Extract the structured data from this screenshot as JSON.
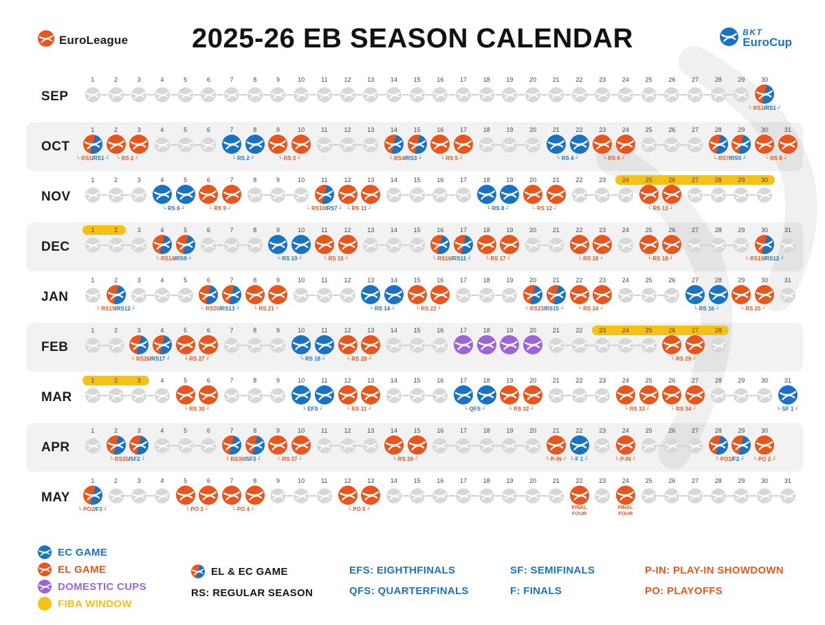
{
  "header": {
    "title": "2025-26 EB SEASON CALENDAR",
    "left_logo": "EuroLeague",
    "right_logo_top": "BKT",
    "right_logo_bottom": "EuroCup"
  },
  "colors": {
    "el": "#e8561d",
    "ec": "#1a73c2",
    "cup": "#9c64d4",
    "fiba": "#f5c116",
    "gray": "#d8d8d8",
    "slash": "#333333"
  },
  "months": [
    {
      "name": "SEP",
      "days": 30,
      "shaded": false,
      "fiba": [],
      "events": [
        {
          "start": 30,
          "end": 30,
          "type": "both",
          "label": "RS1/RS1"
        }
      ]
    },
    {
      "name": "OCT",
      "days": 31,
      "shaded": true,
      "fiba": [],
      "events": [
        {
          "start": 1,
          "end": 1,
          "type": "both",
          "label": "RS1/RS1"
        },
        {
          "start": 2,
          "end": 3,
          "type": "el",
          "label": "RS 2"
        },
        {
          "start": 7,
          "end": 8,
          "type": "ec",
          "label": "RS 2"
        },
        {
          "start": 9,
          "end": 10,
          "type": "el",
          "label": "RS 3"
        },
        {
          "start": 14,
          "end": 15,
          "type": "both",
          "label": "RS4/RS3"
        },
        {
          "start": 16,
          "end": 17,
          "type": "el",
          "label": "RS 5"
        },
        {
          "start": 21,
          "end": 22,
          "type": "ec",
          "label": "RS 4"
        },
        {
          "start": 23,
          "end": 24,
          "type": "el",
          "label": "RS 6"
        },
        {
          "start": 28,
          "end": 29,
          "type": "both",
          "label": "RS7/RS5"
        },
        {
          "start": 30,
          "end": 31,
          "type": "el",
          "label": "RS 8"
        }
      ]
    },
    {
      "name": "NOV",
      "days": 30,
      "shaded": false,
      "fiba": [
        [
          24,
          30
        ]
      ],
      "events": [
        {
          "start": 4,
          "end": 5,
          "type": "ec",
          "label": "RS 6"
        },
        {
          "start": 6,
          "end": 7,
          "type": "el",
          "label": "RS 9"
        },
        {
          "start": 11,
          "end": 11,
          "type": "both",
          "label": "RS10/RS7"
        },
        {
          "start": 12,
          "end": 13,
          "type": "el",
          "label": "RS 11"
        },
        {
          "start": 18,
          "end": 19,
          "type": "ec",
          "label": "RS 8"
        },
        {
          "start": 20,
          "end": 21,
          "type": "el",
          "label": "RS 12"
        },
        {
          "start": 25,
          "end": 26,
          "type": "el",
          "label": "RS 13"
        }
      ]
    },
    {
      "name": "DEC",
      "days": 31,
      "shaded": true,
      "fiba": [
        [
          1,
          2
        ]
      ],
      "events": [
        {
          "start": 4,
          "end": 5,
          "type": "both",
          "label": "RS14/RS9"
        },
        {
          "start": 9,
          "end": 10,
          "type": "ec",
          "label": "RS 10"
        },
        {
          "start": 11,
          "end": 12,
          "type": "el",
          "label": "RS 15"
        },
        {
          "start": 16,
          "end": 17,
          "type": "both",
          "label": "RS16/RS11"
        },
        {
          "start": 18,
          "end": 19,
          "type": "el",
          "label": "RS 17"
        },
        {
          "start": 22,
          "end": 23,
          "type": "el",
          "label": "RS 18"
        },
        {
          "start": 25,
          "end": 26,
          "type": "el",
          "label": "RS 18"
        },
        {
          "start": 30,
          "end": 30,
          "type": "both",
          "label": "RS19/RS12"
        }
      ]
    },
    {
      "name": "JAN",
      "days": 31,
      "shaded": false,
      "fiba": [],
      "events": [
        {
          "start": 2,
          "end": 2,
          "type": "both",
          "label": "RS19/RS12"
        },
        {
          "start": 6,
          "end": 7,
          "type": "both",
          "label": "RS20/RS13"
        },
        {
          "start": 8,
          "end": 9,
          "type": "el",
          "label": "RS 21"
        },
        {
          "start": 13,
          "end": 14,
          "type": "ec",
          "label": "RS 14"
        },
        {
          "start": 15,
          "end": 16,
          "type": "el",
          "label": "RS 22"
        },
        {
          "start": 20,
          "end": 21,
          "type": "both",
          "label": "RS23/RS15"
        },
        {
          "start": 22,
          "end": 23,
          "type": "el",
          "label": "RS 24"
        },
        {
          "start": 27,
          "end": 28,
          "type": "ec",
          "label": "RS 16"
        },
        {
          "start": 29,
          "end": 30,
          "type": "el",
          "label": "RS 25"
        }
      ]
    },
    {
      "name": "FEB",
      "days": 28,
      "shaded": true,
      "fiba": [
        [
          23,
          28
        ]
      ],
      "events": [
        {
          "start": 3,
          "end": 4,
          "type": "both",
          "label": "RS26/RS17"
        },
        {
          "start": 5,
          "end": 6,
          "type": "el",
          "label": "RS 27"
        },
        {
          "start": 10,
          "end": 11,
          "type": "ec",
          "label": "RS 18"
        },
        {
          "start": 12,
          "end": 13,
          "type": "el",
          "label": "RS 28"
        },
        {
          "start": 17,
          "end": 20,
          "type": "cup",
          "label": ""
        },
        {
          "start": 26,
          "end": 27,
          "type": "el",
          "label": "RS 29"
        }
      ]
    },
    {
      "name": "MAR",
      "days": 31,
      "shaded": false,
      "fiba": [
        [
          1,
          3
        ]
      ],
      "events": [
        {
          "start": 5,
          "end": 6,
          "type": "el",
          "label": "RS 30"
        },
        {
          "start": 10,
          "end": 11,
          "type": "ec",
          "label": "EFS"
        },
        {
          "start": 12,
          "end": 13,
          "type": "el",
          "label": "RS 31"
        },
        {
          "start": 17,
          "end": 18,
          "type": "ec",
          "label": "QFS"
        },
        {
          "start": 19,
          "end": 20,
          "type": "el",
          "label": "RS 32"
        },
        {
          "start": 24,
          "end": 25,
          "type": "el",
          "label": "RS 33"
        },
        {
          "start": 26,
          "end": 27,
          "type": "el",
          "label": "RS 34"
        },
        {
          "start": 31,
          "end": 31,
          "type": "ec",
          "label": "SF 1"
        }
      ]
    },
    {
      "name": "APR",
      "days": 30,
      "shaded": true,
      "fiba": [],
      "events": [
        {
          "start": 2,
          "end": 3,
          "type": "both",
          "label": "RS35/SF2"
        },
        {
          "start": 7,
          "end": 8,
          "type": "both",
          "label": "RS36/SF3"
        },
        {
          "start": 9,
          "end": 10,
          "type": "el",
          "label": "RS 37"
        },
        {
          "start": 14,
          "end": 15,
          "type": "el",
          "label": "RS 38"
        },
        {
          "start": 21,
          "end": 21,
          "type": "el",
          "label": "P-IN"
        },
        {
          "start": 22,
          "end": 22,
          "type": "ec",
          "label": "F 1"
        },
        {
          "start": 24,
          "end": 24,
          "type": "el",
          "label": "P-IN"
        },
        {
          "start": 28,
          "end": 29,
          "type": "both",
          "label": "PO1/F2"
        },
        {
          "start": 30,
          "end": 30,
          "type": "el",
          "label": "PO 2"
        }
      ]
    },
    {
      "name": "MAY",
      "days": 31,
      "shaded": false,
      "fiba": [],
      "events": [
        {
          "start": 1,
          "end": 1,
          "type": "both",
          "label": "PO2/F3"
        },
        {
          "start": 5,
          "end": 6,
          "type": "el",
          "label": "PO 3"
        },
        {
          "start": 7,
          "end": 8,
          "type": "el",
          "label": "PO 4"
        },
        {
          "start": 12,
          "end": 13,
          "type": "el",
          "label": "PO 5"
        },
        {
          "start": 22,
          "end": 22,
          "type": "el",
          "label": "FINAL FOUR",
          "stacked": true
        },
        {
          "start": 24,
          "end": 24,
          "type": "el",
          "label": "FINAL FOUR",
          "stacked": true
        }
      ]
    }
  ],
  "legend": {
    "col1": [
      {
        "icon": "ec",
        "label": "EC GAME",
        "color": "#1a73c2"
      },
      {
        "icon": "el",
        "label": "EL GAME",
        "color": "#e8561d"
      },
      {
        "icon": "cup",
        "label": "DOMESTIC CUPS",
        "color": "#9c64d4"
      },
      {
        "icon": "fiba",
        "label": "FIBA WINDOW",
        "color": "#f5c116"
      }
    ],
    "col2": [
      {
        "icon": "both",
        "label": "EL & EC GAME",
        "color": "#141414"
      },
      {
        "icon": "",
        "label": "RS: REGULAR SEASON",
        "color": "#141414"
      }
    ],
    "col3": [
      {
        "icon": "",
        "label": "EFS: EIGHTHFINALS",
        "color": "#1a73c2"
      },
      {
        "icon": "",
        "label": "QFS: QUARTERFINALS",
        "color": "#1a73c2"
      }
    ],
    "col4": [
      {
        "icon": "",
        "label": "SF: SEMIFINALS",
        "color": "#1a73c2"
      },
      {
        "icon": "",
        "label": "F: FINALS",
        "color": "#1a73c2"
      }
    ],
    "col5": [
      {
        "icon": "",
        "label": "P-IN: PLAY-IN SHOWDOWN",
        "color": "#e8561d"
      },
      {
        "icon": "",
        "label": "PO: PLAYOFFS",
        "color": "#e8561d"
      }
    ]
  }
}
